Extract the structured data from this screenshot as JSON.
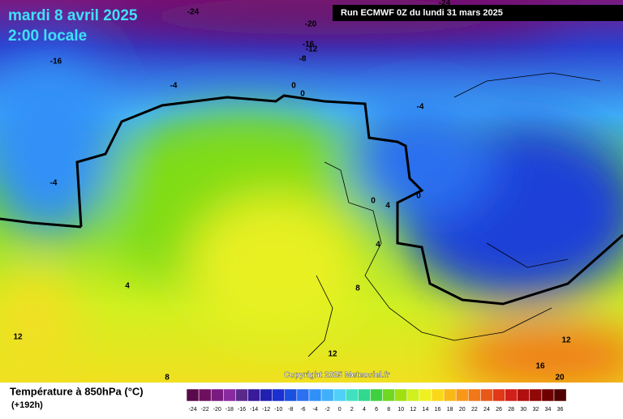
{
  "header": {
    "date": "mardi 8 avril 2025",
    "time": "2:00 locale",
    "run": "Run ECMWF 0Z du lundi 31 mars 2025"
  },
  "copyright": "Copyright 2025 Meteociel.fr",
  "footer": {
    "title": "Température à 850hPa (°C)",
    "subtitle": "(+192h)"
  },
  "contour_labels": [
    -24,
    -24,
    -20,
    -16,
    -12,
    -8,
    -16,
    -4,
    0,
    0,
    -4,
    -4,
    0,
    0,
    4,
    4,
    4,
    8,
    12,
    12,
    12,
    16,
    8,
    20
  ],
  "scale": {
    "labels": [
      -24,
      -22,
      -20,
      -18,
      -16,
      -14,
      -12,
      -10,
      -8,
      -6,
      -4,
      -2,
      0,
      2,
      4,
      6,
      8,
      10,
      12,
      14,
      16,
      18,
      20,
      22,
      24,
      26,
      28,
      30,
      32,
      34,
      36
    ],
    "colors": [
      "#5a0a4a",
      "#6e1060",
      "#7a1a80",
      "#8a2aa0",
      "#5a2a8a",
      "#3a1a9a",
      "#2020b0",
      "#1a30d0",
      "#1a50e0",
      "#2a70f0",
      "#3090f8",
      "#40b0f8",
      "#50d0f8",
      "#40e0c0",
      "#30d890",
      "#40d040",
      "#70d820",
      "#a0e010",
      "#d0f020",
      "#f0f020",
      "#f8d818",
      "#f8b818",
      "#f89818",
      "#f07818",
      "#e85818",
      "#e03818",
      "#d02018",
      "#b01010",
      "#900808",
      "#700000",
      "#500000"
    ]
  }
}
